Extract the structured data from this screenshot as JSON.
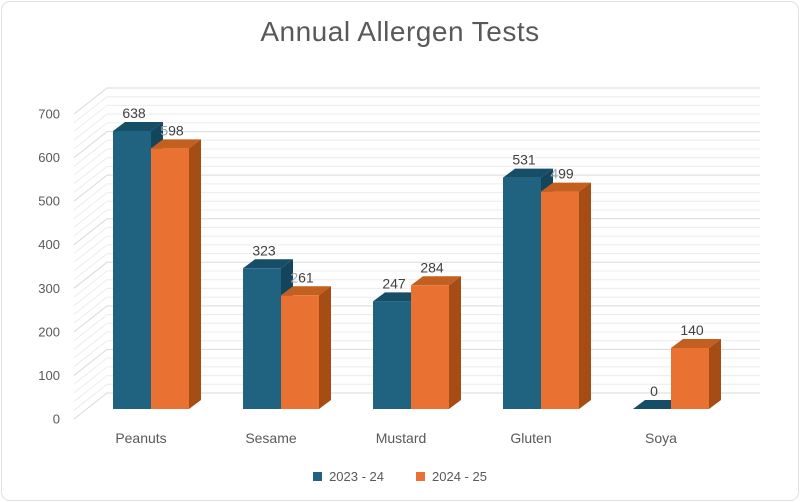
{
  "chart_data": {
    "type": "bar",
    "style": "3d-clustered-column",
    "title": "Annual Allergen Tests",
    "categories": [
      "Peanuts",
      "Sesame",
      "Mustard",
      "Gluten",
      "Soya"
    ],
    "series": [
      {
        "name": "2023 - 24",
        "color": "#1F6380",
        "color_top": "#174E67",
        "color_side": "#15455C",
        "values": [
          638,
          323,
          247,
          531,
          0
        ]
      },
      {
        "name": "2024 - 25",
        "color": "#E97132",
        "color_top": "#C4601F",
        "color_side": "#A54D15",
        "values": [
          598,
          261,
          284,
          499,
          140
        ]
      }
    ],
    "data_labels": [
      [
        [
          {
            "t": "638"
          }
        ],
        [
          {
            "t": "323"
          }
        ],
        [
          {
            "t": "247"
          }
        ],
        [
          {
            "t": "531"
          }
        ],
        [
          {
            "t": "0"
          }
        ]
      ],
      [
        [
          {
            "t": "5",
            "occ": true
          },
          {
            "t": "98"
          }
        ],
        [
          {
            "t": "2",
            "occ": true
          },
          {
            "t": "61"
          }
        ],
        [
          {
            "t": "284"
          }
        ],
        [
          {
            "t": "4",
            "occ": true
          },
          {
            "t": "99"
          }
        ],
        [
          {
            "t": "140"
          }
        ]
      ]
    ],
    "ylim": [
      0,
      700
    ],
    "yticks": [
      0,
      100,
      200,
      300,
      400,
      500,
      600,
      700
    ],
    "y_minor_step": 20,
    "grid": true,
    "legend_position": "bottom"
  },
  "colors": {
    "title": "#595959",
    "axis_tick": "#595959",
    "category_label": "#595959",
    "data_label": "#404040",
    "data_label_occluded": "#98A9B2",
    "gridline_major": "#D9D9D9",
    "gridline_minor": "#ECECEC",
    "legend_text": "#595959",
    "frame_border": "#E0E0E0"
  }
}
